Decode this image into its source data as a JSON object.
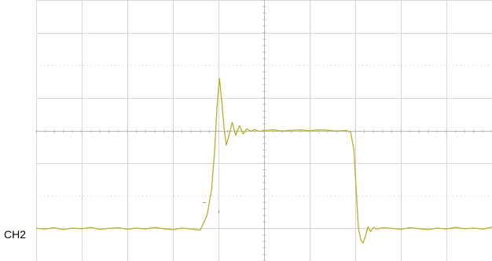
{
  "chart_data": {
    "type": "line",
    "title": "",
    "xlabel": "",
    "ylabel": "",
    "grid": true,
    "grid_divisions": {
      "x": 10,
      "y": 8
    },
    "xlim": [
      0,
      10
    ],
    "ylim": [
      -4,
      4
    ],
    "series": [
      {
        "name": "CH2",
        "color": "#b9b02a",
        "x": [
          0,
          0.2,
          0.4,
          0.6,
          0.8,
          1.0,
          1.2,
          1.4,
          1.6,
          1.8,
          2.0,
          2.2,
          2.4,
          2.6,
          2.8,
          3.0,
          3.2,
          3.4,
          3.6,
          3.75,
          3.85,
          3.92,
          3.97,
          4.02,
          4.07,
          4.12,
          4.17,
          4.22,
          4.3,
          4.38,
          4.46,
          4.54,
          4.62,
          4.7,
          4.8,
          4.9,
          5.0,
          5.2,
          5.4,
          5.6,
          5.8,
          6.0,
          6.2,
          6.4,
          6.6,
          6.8,
          6.9,
          6.97,
          7.02,
          7.07,
          7.12,
          7.17,
          7.22,
          7.28,
          7.34,
          7.4,
          7.46,
          7.6,
          7.8,
          8.0,
          8.2,
          8.4,
          8.6,
          8.8,
          9.0,
          9.2,
          9.4,
          9.6,
          9.8,
          10.0
        ],
        "y": [
          -3.0,
          -3.02,
          -2.98,
          -3.04,
          -2.99,
          -3.01,
          -2.97,
          -3.03,
          -3.0,
          -2.98,
          -3.03,
          -2.99,
          -3.02,
          -2.97,
          -3.01,
          -3.04,
          -2.99,
          -3.02,
          -3.05,
          -2.6,
          -1.8,
          -0.5,
          0.8,
          1.6,
          0.9,
          0.1,
          -0.45,
          -0.2,
          0.25,
          -0.15,
          0.15,
          -0.1,
          0.05,
          -0.02,
          0.03,
          -0.03,
          0.0,
          0.02,
          -0.02,
          0.01,
          0.02,
          -0.01,
          0.02,
          0.01,
          -0.02,
          0.0,
          -0.05,
          -0.6,
          -1.8,
          -3.0,
          -3.35,
          -3.45,
          -3.25,
          -2.95,
          -3.1,
          -2.97,
          -3.02,
          -2.98,
          -3.0,
          -3.03,
          -2.98,
          -3.01,
          -3.04,
          -2.99,
          -3.02,
          -2.97,
          -3.01,
          -2.99,
          -3.02,
          -2.96
        ]
      }
    ],
    "channel_label": "CH2"
  }
}
